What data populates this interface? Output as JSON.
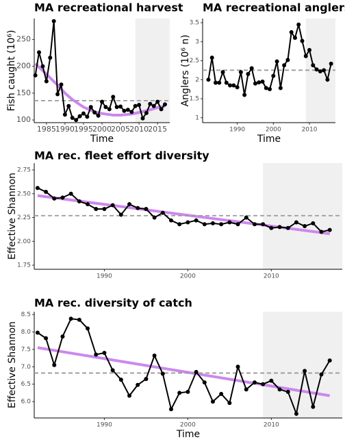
{
  "chart_data": [
    {
      "type": "line",
      "title": "MA recreational harvest",
      "xlabel": "Time",
      "ylabel": "Fish caught (10⁶)",
      "x": [
        1982,
        1983,
        1984,
        1985,
        1986,
        1987,
        1988,
        1989,
        1990,
        1991,
        1992,
        1993,
        1994,
        1995,
        1996,
        1997,
        1998,
        1999,
        2000,
        2001,
        2002,
        2003,
        2004,
        2005,
        2006,
        2007,
        2008,
        2009,
        2010,
        2011,
        2012,
        2013,
        2014,
        2015,
        2016,
        2017
      ],
      "series": [
        {
          "color": "#000000",
          "values": [
            183,
            226,
            200,
            172,
            216,
            284,
            148,
            166,
            110,
            126,
            104,
            100,
            107,
            112,
            106,
            124,
            114,
            108,
            134,
            124,
            120,
            143,
            124,
            125,
            117,
            119,
            115,
            126,
            128,
            103,
            113,
            130,
            126,
            134,
            120,
            129
          ]
        }
      ],
      "trend": {
        "color": "#cc88ee",
        "x": [
          1982,
          1985,
          1988,
          1990,
          1992,
          1995,
          1998,
          2000,
          2003,
          2005,
          2008,
          2010,
          2013,
          2015,
          2017
        ],
        "values": [
          205,
          185,
          165,
          150,
          138,
          124,
          115,
          112,
          109,
          109,
          111,
          114,
          119,
          123,
          126
        ]
      },
      "hline": 136,
      "shade_start": 2009,
      "xlim": [
        1981.7,
        2018.3
      ],
      "xticks": [
        1985,
        1990,
        1995,
        2000,
        2005,
        2010,
        2015
      ],
      "ylim": [
        95,
        289
      ],
      "yticks": [
        100,
        150,
        200,
        250
      ]
    },
    {
      "type": "line",
      "title": "MA recreational anglers",
      "xlabel": "Time",
      "ylabel": "Anglers (10⁶ n)",
      "x": [
        1982,
        1983,
        1984,
        1985,
        1986,
        1987,
        1988,
        1989,
        1990,
        1991,
        1992,
        1993,
        1994,
        1995,
        1996,
        1997,
        1998,
        1999,
        2000,
        2001,
        2002,
        2003,
        2004,
        2005,
        2006,
        2007,
        2008,
        2009,
        2010,
        2011,
        2012,
        2013,
        2014,
        2015,
        2016
      ],
      "series": [
        {
          "color": "#000000",
          "values": [
            2.0,
            2.58,
            1.92,
            1.92,
            2.2,
            1.92,
            1.85,
            1.85,
            1.8,
            2.2,
            1.6,
            2.15,
            2.3,
            1.9,
            1.93,
            1.95,
            1.78,
            1.75,
            2.1,
            2.48,
            1.78,
            2.38,
            2.52,
            3.25,
            3.1,
            3.45,
            3.02,
            2.62,
            2.78,
            2.38,
            2.27,
            2.22,
            2.25,
            2.0,
            2.42
          ]
        }
      ],
      "hline": 2.25,
      "shade_start": 2009,
      "xlim": [
        1980.4,
        2017.2
      ],
      "xticks": [
        1990,
        2000,
        2010
      ],
      "ylim": [
        0.87,
        3.61
      ],
      "yticks": [
        1,
        1.5,
        2,
        2.5,
        3,
        3.5
      ]
    },
    {
      "type": "line",
      "title": "MA rec. fleet effort diversity",
      "ylabel": "Effective Shannon",
      "x": [
        1982,
        1983,
        1984,
        1985,
        1986,
        1987,
        1988,
        1989,
        1990,
        1991,
        1992,
        1993,
        1994,
        1995,
        1996,
        1997,
        1998,
        1999,
        2000,
        2001,
        2002,
        2003,
        2004,
        2005,
        2006,
        2007,
        2008,
        2009,
        2010,
        2011,
        2012,
        2013,
        2014,
        2015,
        2016,
        2017
      ],
      "series": [
        {
          "color": "#000000",
          "values": [
            2.56,
            2.52,
            2.45,
            2.46,
            2.5,
            2.42,
            2.39,
            2.34,
            2.34,
            2.38,
            2.28,
            2.39,
            2.35,
            2.34,
            2.25,
            2.3,
            2.22,
            2.18,
            2.2,
            2.22,
            2.18,
            2.19,
            2.18,
            2.2,
            2.18,
            2.25,
            2.18,
            2.18,
            2.14,
            2.15,
            2.14,
            2.2,
            2.16,
            2.19,
            2.1,
            2.12
          ]
        }
      ],
      "trend": {
        "color": "#cc88ee",
        "x": [
          1982,
          2017
        ],
        "values": [
          2.48,
          2.08
        ]
      },
      "hline": 2.27,
      "shade_start": 2009,
      "xlim": [
        1981.6,
        2018.5
      ],
      "xticks": [
        1990,
        2000,
        2010
      ],
      "ylim": [
        1.707,
        2.822
      ],
      "yticks": [
        1.75,
        {
          "value": 2,
          "label": "2.00"
        },
        {
          "value": 2.25,
          "label": "2.25"
        },
        {
          "value": 2.5,
          "label": "2.50"
        },
        2.75
      ]
    },
    {
      "type": "line",
      "title": "MA rec. diversity of catch",
      "xlabel": "Time",
      "ylabel": "Effective Shannon",
      "x": [
        1982,
        1983,
        1984,
        1985,
        1986,
        1987,
        1988,
        1989,
        1990,
        1991,
        1992,
        1993,
        1994,
        1995,
        1996,
        1997,
        1998,
        1999,
        2000,
        2001,
        2002,
        2003,
        2004,
        2005,
        2006,
        2007,
        2008,
        2009,
        2010,
        2011,
        2012,
        2013,
        2014,
        2015,
        2016,
        2017
      ],
      "series": [
        {
          "color": "#000000",
          "values": [
            7.98,
            7.82,
            7.05,
            7.87,
            8.38,
            8.35,
            8.1,
            7.35,
            7.4,
            6.9,
            6.63,
            6.17,
            6.48,
            6.65,
            7.32,
            6.8,
            5.78,
            6.25,
            6.28,
            6.85,
            6.55,
            6.0,
            6.22,
            5.96,
            7.0,
            6.35,
            6.55,
            6.5,
            6.6,
            6.35,
            6.28,
            5.65,
            6.88,
            5.85,
            6.78,
            7.18
          ]
        }
      ],
      "trend": {
        "color": "#cc88ee",
        "x": [
          1982,
          2017
        ],
        "values": [
          7.55,
          6.17
        ]
      },
      "hline": 6.82,
      "shade_start": 2009,
      "xlim": [
        1981.6,
        2018.5
      ],
      "xticks": [
        1990,
        2000,
        2010
      ],
      "ylim": [
        5.53,
        8.58
      ],
      "yticks": [
        {
          "value": 6,
          "label": "6.0"
        },
        6.5,
        {
          "value": 7,
          "label": "7.0"
        },
        7.5,
        {
          "value": 8,
          "label": "8.0"
        },
        8.5
      ]
    }
  ]
}
